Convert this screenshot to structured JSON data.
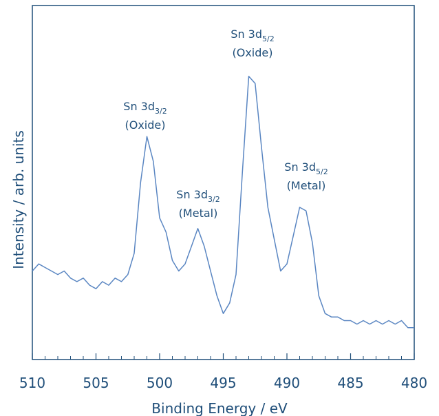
{
  "chart_data": {
    "type": "line",
    "xlabel": "Binding Energy / eV",
    "ylabel": "Intensity / arb. units",
    "xlim": [
      510,
      480
    ],
    "xticks": [
      510,
      505,
      500,
      495,
      490,
      485,
      480
    ],
    "xminorticks": [
      509,
      508,
      507,
      506,
      504,
      503,
      502,
      501,
      499,
      498,
      497,
      496,
      494,
      493,
      492,
      491,
      489,
      488,
      487,
      486,
      484,
      483,
      482,
      481
    ],
    "ylim": [
      0,
      100
    ],
    "series": [
      {
        "name": "Sn 3d",
        "color": "#5a86c2",
        "x": [
          510,
          509.5,
          509,
          508.5,
          508,
          507.5,
          507,
          506.5,
          506,
          505.5,
          505,
          504.5,
          504,
          503.5,
          503,
          502.5,
          502,
          501.5,
          501,
          500.5,
          500,
          499.5,
          499,
          498.5,
          498,
          497.5,
          497,
          496.5,
          496,
          495.5,
          495,
          494.5,
          494,
          493.5,
          493,
          492.5,
          492,
          491.5,
          491,
          490.5,
          490,
          489.5,
          489,
          488.5,
          488,
          487.5,
          487,
          486.5,
          486,
          485.5,
          485,
          484.5,
          484,
          483.5,
          483,
          482.5,
          482,
          481.5,
          481,
          480.5,
          480
        ],
        "values": [
          25,
          27,
          26,
          25,
          24,
          25,
          23,
          22,
          23,
          21,
          20,
          22,
          21,
          23,
          22,
          24,
          30,
          50,
          63,
          56,
          40,
          36,
          28,
          25,
          27,
          32,
          37,
          32,
          25,
          18,
          13,
          16,
          24,
          53,
          80,
          78,
          60,
          43,
          34,
          25,
          27,
          35,
          43,
          42,
          33,
          18,
          13,
          12,
          12,
          11,
          11,
          10,
          11,
          10,
          11,
          10,
          11,
          10,
          11,
          9,
          9
        ]
      }
    ],
    "annotations": [
      {
        "text": "Sn 3d",
        "sub": "3/2",
        "line2": "(Oxide)"
      },
      {
        "text": "Sn 3d",
        "sub": "3/2",
        "line2": "(Metal)"
      },
      {
        "text": "Sn 3d",
        "sub": "5/2",
        "line2": "(Oxide)"
      },
      {
        "text": "Sn 3d",
        "sub": "5/2",
        "line2": "(Metal)"
      }
    ]
  }
}
